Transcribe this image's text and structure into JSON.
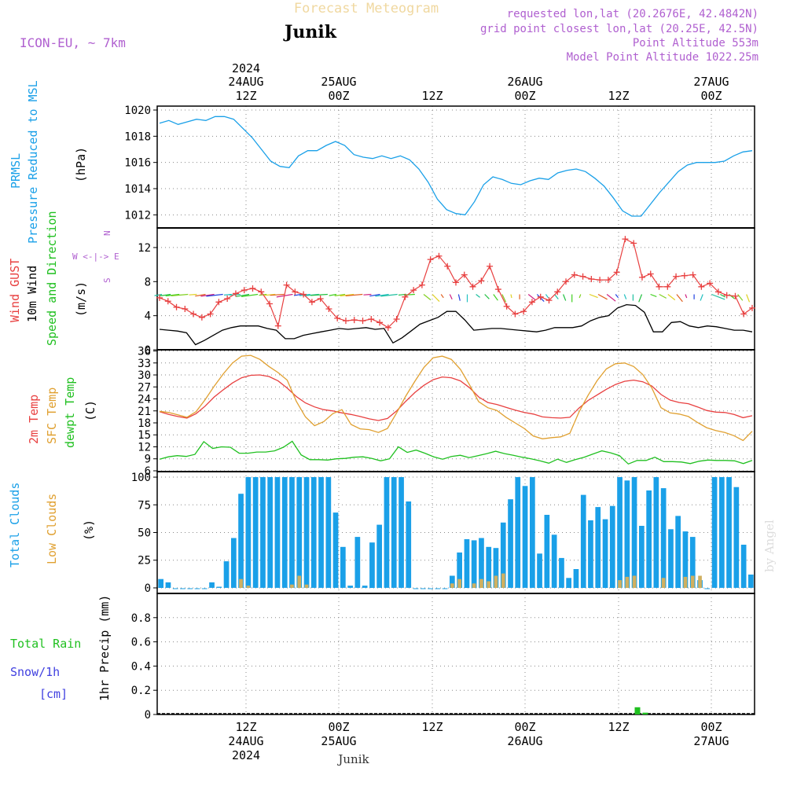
{
  "header": {
    "title": "Forecast Meteogram",
    "location": "Junik",
    "model": "ICON-EU, ~ 7km",
    "requested": "requested lon,lat (20.2676E, 42.4842N)",
    "gridpoint": "grid point closest lon,lat (20.25E, 42.5N)",
    "point_alt": "Point Altitude 553m",
    "model_alt": "Model Point Altitude 1022.25m",
    "footer_location": "Junik",
    "watermark": "by Angel"
  },
  "colors": {
    "pressure": "#1aa0e8",
    "gust": "#e84040",
    "wind": "#000000",
    "temp2m": "#e84040",
    "sfc": "#e0a030",
    "dew": "#20c020",
    "total_clouds": "#1aa0e8",
    "low_clouds": "#d0b060",
    "rain": "#20c020",
    "snow": "#4040e0",
    "purple": "#b060d0"
  },
  "time_axis": {
    "top_row1": [
      "2024",
      "",
      "",
      "",
      "",
      "",
      ""
    ],
    "top_row2": [
      "24AUG",
      "25AUG",
      "",
      "26AUG",
      "",
      "27AUG",
      ""
    ],
    "top_row3": [
      "12Z",
      "00Z",
      "12Z",
      "00Z",
      "12Z",
      "00Z",
      ""
    ],
    "bottom_row1": [
      "12Z",
      "00Z",
      "12Z",
      "00Z",
      "12Z",
      "00Z"
    ],
    "bottom_row2": [
      "24AUG",
      "25AUG",
      "",
      "26AUG",
      "",
      "27AUG"
    ],
    "bottom_row3": [
      "2024",
      "",
      "",
      "",
      "",
      ""
    ]
  },
  "panel_labels": {
    "p1": [
      "PRMSL",
      "Pressure Reduced to MSL",
      "(hPa)"
    ],
    "p2": [
      "Wind GUST",
      "10m Wind",
      "Speed and Direction",
      "(m/s)"
    ],
    "compass": [
      "N",
      "W <-|-> E",
      "S"
    ],
    "p3": [
      "2m Temp",
      "SFC Temp",
      "dewpt Temp",
      "(C)"
    ],
    "p4": [
      "Total Clouds",
      "Low Clouds",
      "(%)"
    ],
    "p5": [
      "Total Rain",
      "Snow/1h",
      "[cm]",
      "1hr Precip (mm)"
    ]
  },
  "chart_data": [
    {
      "type": "line",
      "title": "PRMSL Pressure Reduced to MSL",
      "ylabel": "(hPa)",
      "ylim": [
        1011,
        1020.3
      ],
      "yticks": [
        1012,
        1014,
        1016,
        1018,
        1020
      ],
      "hours": [
        0,
        1,
        2,
        3,
        4,
        5,
        6,
        7,
        8,
        9,
        10,
        11,
        12,
        13,
        14,
        15,
        16,
        17,
        18,
        19,
        20,
        21,
        22,
        23,
        24,
        25,
        26,
        27,
        28,
        29,
        30,
        31,
        32,
        33,
        34,
        35,
        36,
        37,
        38,
        39,
        40,
        41,
        42,
        43,
        44,
        45,
        46,
        47,
        48,
        49,
        50,
        51,
        52,
        53,
        54,
        55,
        56,
        57,
        58,
        59,
        60,
        61,
        62,
        63,
        64
      ],
      "values": [
        1019.0,
        1019.2,
        1018.9,
        1019.1,
        1019.3,
        1019.2,
        1019.5,
        1019.5,
        1019.3,
        1018.6,
        1017.9,
        1017.0,
        1016.1,
        1015.7,
        1015.6,
        1016.5,
        1016.9,
        1016.9,
        1017.3,
        1017.6,
        1017.3,
        1016.6,
        1016.4,
        1016.3,
        1016.5,
        1016.3,
        1016.5,
        1016.2,
        1015.5,
        1014.5,
        1013.2,
        1012.4,
        1012.1,
        1012.0,
        1013.0,
        1014.3,
        1014.9,
        1014.7,
        1014.4,
        1014.3,
        1014.6,
        1014.8,
        1014.7,
        1015.2,
        1015.4,
        1015.5,
        1015.3,
        1014.8,
        1014.2,
        1013.3,
        1012.3,
        1011.9,
        1011.9,
        1012.8,
        1013.7,
        1014.5,
        1015.3,
        1015.8,
        1016.0,
        1016.0,
        1016.0,
        1016.1,
        1016.5,
        1016.8,
        1016.9
      ]
    },
    {
      "type": "line",
      "title": "Wind GUST / 10m Wind",
      "ylabel": "(m/s)",
      "ylim": [
        0,
        14.3
      ],
      "yticks": [
        0,
        4,
        8,
        12
      ],
      "series": [
        {
          "name": "Wind GUST",
          "values": [
            6.1,
            5.7,
            5.0,
            4.8,
            4.2,
            3.8,
            4.2,
            5.6,
            6.0,
            6.6,
            7.0,
            7.2,
            6.8,
            5.4,
            2.8,
            7.6,
            6.8,
            6.5,
            5.6,
            6.0,
            4.8,
            3.7,
            3.4,
            3.5,
            3.4,
            3.6,
            3.2,
            2.6,
            3.6,
            6.2,
            7.0,
            7.6,
            10.6,
            11.0,
            9.8,
            7.9,
            8.8,
            7.4,
            8.1,
            9.8,
            7.1,
            5.1,
            4.2,
            4.5,
            5.6,
            6.2,
            5.8,
            6.8,
            8.0,
            8.8,
            8.6,
            8.3,
            8.2,
            8.2,
            9.1,
            13.0,
            12.5,
            8.5,
            8.9,
            7.4,
            7.4,
            8.6,
            8.7,
            8.8,
            7.4,
            7.8,
            6.8,
            6.4,
            6.3,
            4.2,
            4.9
          ]
        },
        {
          "name": "10m Wind",
          "values": [
            2.4,
            2.3,
            2.2,
            2.0,
            0.6,
            1.1,
            1.7,
            2.3,
            2.6,
            2.8,
            2.8,
            2.8,
            2.5,
            2.3,
            1.3,
            1.3,
            1.7,
            1.9,
            2.1,
            2.3,
            2.5,
            2.4,
            2.5,
            2.6,
            2.4,
            2.5,
            0.8,
            1.4,
            2.2,
            3.0,
            3.4,
            3.8,
            4.5,
            4.5,
            3.5,
            2.3,
            2.4,
            2.5,
            2.5,
            2.4,
            2.3,
            2.2,
            2.1,
            2.3,
            2.6,
            2.6,
            2.6,
            2.8,
            3.4,
            3.8,
            4.0,
            4.9,
            5.3,
            5.2,
            4.4,
            2.1,
            2.1,
            3.2,
            3.3,
            2.8,
            2.6,
            2.8,
            2.7,
            2.5,
            2.3,
            2.3,
            2.1
          ]
        }
      ]
    },
    {
      "type": "line",
      "title": "2m Temp / SFC Temp / dewpt Temp",
      "ylabel": "(C)",
      "ylim": [
        5.8,
        36.3
      ],
      "yticks": [
        6,
        9,
        12,
        15,
        18,
        21,
        24,
        27,
        30,
        33,
        36
      ],
      "series": [
        {
          "name": "2m Temp",
          "values": [
            20.8,
            20.1,
            19.6,
            19.2,
            20.3,
            22.2,
            24.5,
            26.3,
            28.0,
            29.3,
            29.9,
            30.0,
            29.6,
            28.5,
            26.7,
            24.6,
            23.0,
            22.0,
            21.3,
            21.0,
            20.5,
            20.1,
            19.6,
            19.0,
            18.6,
            19.1,
            21.0,
            23.4,
            25.6,
            27.4,
            28.8,
            29.5,
            29.3,
            28.5,
            26.8,
            24.5,
            23.1,
            22.6,
            21.9,
            21.2,
            20.6,
            20.2,
            19.5,
            19.3,
            19.2,
            19.4,
            21.7,
            23.6,
            25.0,
            26.4,
            27.6,
            28.4,
            28.7,
            28.3,
            27.2,
            25.1,
            23.7,
            23.1,
            22.8,
            22.0,
            21.1,
            20.7,
            20.6,
            20.1,
            19.3,
            19.8
          ]
        },
        {
          "name": "SFC Temp",
          "values": [
            20.9,
            20.6,
            20.0,
            19.4,
            20.8,
            23.8,
            27.2,
            30.3,
            33.0,
            34.7,
            34.9,
            33.9,
            32.1,
            30.6,
            28.7,
            23.4,
            19.5,
            17.3,
            18.3,
            20.3,
            21.3,
            17.6,
            16.5,
            16.3,
            15.6,
            16.6,
            20.5,
            24.7,
            28.4,
            31.9,
            34.3,
            34.7,
            33.9,
            31.4,
            27.5,
            23.3,
            21.8,
            21.1,
            19.4,
            18.0,
            16.6,
            14.7,
            14.0,
            14.3,
            14.5,
            15.4,
            20.7,
            24.9,
            28.6,
            31.5,
            32.8,
            33.0,
            32.1,
            30.1,
            26.7,
            21.8,
            20.5,
            20.2,
            19.6,
            18.1,
            16.8,
            16.1,
            15.6,
            14.8,
            13.6,
            15.9
          ]
        },
        {
          "name": "dewpt Temp",
          "values": [
            8.9,
            9.5,
            9.8,
            9.6,
            10.1,
            13.3,
            11.6,
            12.0,
            11.9,
            10.4,
            10.4,
            10.7,
            10.7,
            11.0,
            11.9,
            13.4,
            10.0,
            8.8,
            8.8,
            8.7,
            9.0,
            9.1,
            9.4,
            9.5,
            9.1,
            8.5,
            9.0,
            12.0,
            10.6,
            11.2,
            10.4,
            9.5,
            8.9,
            9.6,
            9.9,
            9.3,
            9.8,
            10.3,
            10.9,
            10.3,
            9.9,
            9.4,
            9.0,
            8.5,
            7.9,
            8.9,
            8.1,
            8.8,
            9.4,
            10.2,
            11.0,
            10.5,
            9.8,
            7.7,
            8.6,
            8.6,
            9.4,
            8.3,
            8.3,
            8.2,
            7.8,
            8.4,
            8.7,
            8.6,
            8.6,
            8.5,
            7.8,
            8.6
          ]
        }
      ]
    },
    {
      "type": "bar",
      "title": "Total Clouds / Low Clouds",
      "ylabel": "(%)",
      "ylim": [
        -5,
        105
      ],
      "yticks": [
        0,
        25,
        50,
        75,
        100
      ],
      "series": [
        {
          "name": "Total Clouds",
          "values": [
            8,
            5,
            0,
            0,
            0,
            0,
            0,
            5,
            1,
            24,
            45,
            85,
            100,
            100,
            100,
            100,
            100,
            100,
            100,
            100,
            100,
            100,
            100,
            100,
            68,
            37,
            2,
            46,
            2,
            41,
            57,
            100,
            100,
            100,
            78,
            0,
            0,
            0,
            0,
            0,
            11,
            32,
            44,
            43,
            45,
            37,
            36,
            59,
            80,
            100,
            92,
            100,
            31,
            66,
            48,
            27,
            9,
            17,
            84,
            61,
            73,
            62,
            74,
            100,
            97,
            100,
            56,
            88,
            100,
            90,
            53,
            65,
            51,
            46,
            7,
            0,
            100,
            100,
            100,
            91,
            39,
            12
          ]
        },
        {
          "name": "Low Clouds",
          "values": [
            0,
            0,
            0,
            0,
            0,
            0,
            0,
            0,
            0,
            0,
            0,
            8,
            2,
            0,
            0,
            0,
            0,
            0,
            3,
            11,
            3,
            0,
            0,
            0,
            0,
            0,
            0,
            0,
            0,
            0,
            0,
            0,
            0,
            0,
            0,
            0,
            0,
            0,
            0,
            0,
            4,
            8,
            0,
            4,
            8,
            6,
            11,
            13,
            0,
            0,
            0,
            0,
            0,
            0,
            0,
            0,
            0,
            0,
            0,
            0,
            0,
            0,
            0,
            7,
            10,
            11,
            0,
            0,
            0,
            9,
            0,
            0,
            10,
            11,
            11,
            0,
            0,
            0,
            0,
            0,
            0,
            0
          ]
        }
      ]
    },
    {
      "type": "bar",
      "title": "1hr Precip",
      "ylabel": "1hr Precip (mm)",
      "ylim": [
        0,
        1.0
      ],
      "yticks": [
        0,
        0.2,
        0.4,
        0.6,
        0.8
      ],
      "series": [
        {
          "name": "Total Rain",
          "hours": [
            54,
            55
          ],
          "values": [
            0.06,
            0.015
          ]
        },
        {
          "name": "Snow/1h",
          "hours": [],
          "values": []
        }
      ]
    }
  ]
}
